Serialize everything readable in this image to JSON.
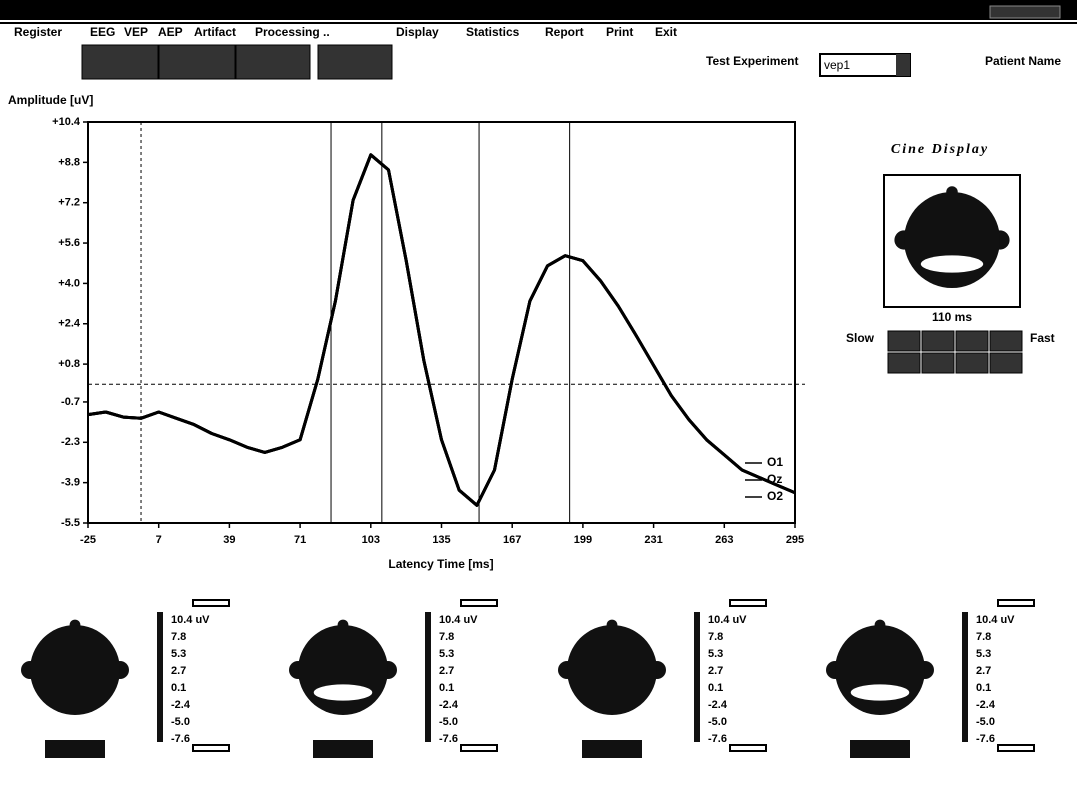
{
  "menu": [
    "Register",
    "EEG",
    "VEP",
    "AEP",
    "Artifact",
    "Processing ..",
    "Display",
    "Statistics",
    "Report",
    "Print",
    "Exit"
  ],
  "header": {
    "test_experiment_label": "Test Experiment",
    "test_experiment_value": "vep1",
    "patient_name_label": "Patient Name"
  },
  "chart_data": {
    "type": "line",
    "y_label": "Amplitude [uV]",
    "x_label": "Latency Time [ms]",
    "x": [
      -25,
      -17,
      -9,
      -1,
      7,
      15,
      23,
      31,
      39,
      47,
      55,
      63,
      71,
      79,
      87,
      95,
      103,
      111,
      119,
      127,
      135,
      143,
      151,
      159,
      167,
      175,
      183,
      191,
      199,
      207,
      215,
      223,
      231,
      239,
      247,
      255,
      263,
      271,
      279,
      287,
      295
    ],
    "series": [
      {
        "name": "O1",
        "color": "#000000",
        "values": [
          -1.2,
          -1.1,
          -1.3,
          -1.35,
          -1.1,
          -1.35,
          -1.6,
          -1.95,
          -2.2,
          -2.5,
          -2.7,
          -2.5,
          -2.2,
          0.2,
          3.3,
          7.3,
          9.1,
          8.5,
          4.9,
          0.95,
          -2.2,
          -4.2,
          -4.8,
          -3.4,
          0.2,
          3.3,
          4.7,
          5.1,
          4.9,
          4.1,
          3.1,
          1.95,
          0.75,
          -0.45,
          -1.4,
          -2.2,
          -2.8,
          -3.4,
          -3.7,
          -4.0,
          -4.3
        ]
      },
      {
        "name": "Oz",
        "color": "#000000",
        "values": [
          -1.2,
          -1.1,
          -1.3,
          -1.35,
          -1.1,
          -1.35,
          -1.6,
          -1.95,
          -2.2,
          -2.5,
          -2.7,
          -2.5,
          -2.2,
          0.2,
          3.3,
          7.3,
          9.1,
          8.5,
          4.9,
          0.95,
          -2.2,
          -4.2,
          -4.8,
          -3.4,
          0.2,
          3.3,
          4.7,
          5.1,
          4.9,
          4.1,
          3.1,
          1.95,
          0.75,
          -0.45,
          -1.4,
          -2.2,
          -2.8,
          -3.4,
          -3.7,
          -4.0,
          -4.3
        ]
      },
      {
        "name": "O2",
        "color": "#000000",
        "values": [
          -1.2,
          -1.1,
          -1.3,
          -1.35,
          -1.1,
          -1.35,
          -1.6,
          -1.95,
          -2.2,
          -2.5,
          -2.7,
          -2.5,
          -2.2,
          0.2,
          3.3,
          7.3,
          9.1,
          8.5,
          4.9,
          0.95,
          -2.2,
          -4.2,
          -4.8,
          -3.4,
          0.2,
          3.3,
          4.7,
          5.1,
          4.9,
          4.1,
          3.1,
          1.95,
          0.75,
          -0.45,
          -1.4,
          -2.2,
          -2.8,
          -3.4,
          -3.7,
          -4.0,
          -4.3
        ]
      }
    ],
    "xlim": [
      -25,
      295
    ],
    "ylim": [
      -5.5,
      10.4
    ],
    "xticks": [
      -25,
      7,
      39,
      71,
      103,
      135,
      167,
      199,
      231,
      263,
      295
    ],
    "yticks": [
      {
        "value": 10.4,
        "label": "+10.4"
      },
      {
        "value": 8.8,
        "label": "+8.8"
      },
      {
        "value": 7.2,
        "label": "+7.2"
      },
      {
        "value": 5.6,
        "label": "+5.6"
      },
      {
        "value": 4.0,
        "label": "+4.0"
      },
      {
        "value": 2.4,
        "label": "+2.4"
      },
      {
        "value": 0.8,
        "label": "+0.8"
      },
      -0.7,
      -2.3,
      -3.9,
      -5.5
    ],
    "cursors": {
      "dotted_x": -1,
      "solid_x": [
        85,
        108,
        152,
        193
      ],
      "dotted_y": 0
    }
  },
  "cine": {
    "title": "Cine Display",
    "time": "110 ms",
    "slow": "Slow",
    "fast": "Fast"
  },
  "topomaps": [
    {
      "scale": [
        "10.4 uV",
        "7.8",
        "5.3",
        "2.7",
        "0.1",
        "-2.4",
        "-5.0",
        "-7.6"
      ]
    },
    {
      "scale": [
        "10.4 uV",
        "7.8",
        "5.3",
        "2.7",
        "0.1",
        "-2.4",
        "-5.0",
        "-7.6"
      ]
    },
    {
      "scale": [
        "10.4 uV",
        "7.8",
        "5.3",
        "2.7",
        "0.1",
        "-2.4",
        "-5.0",
        "-7.6"
      ]
    },
    {
      "scale": [
        "10.4 uV",
        "7.8",
        "5.3",
        "2.7",
        "0.1",
        "-2.4",
        "-5.0",
        "-7.6"
      ]
    }
  ]
}
